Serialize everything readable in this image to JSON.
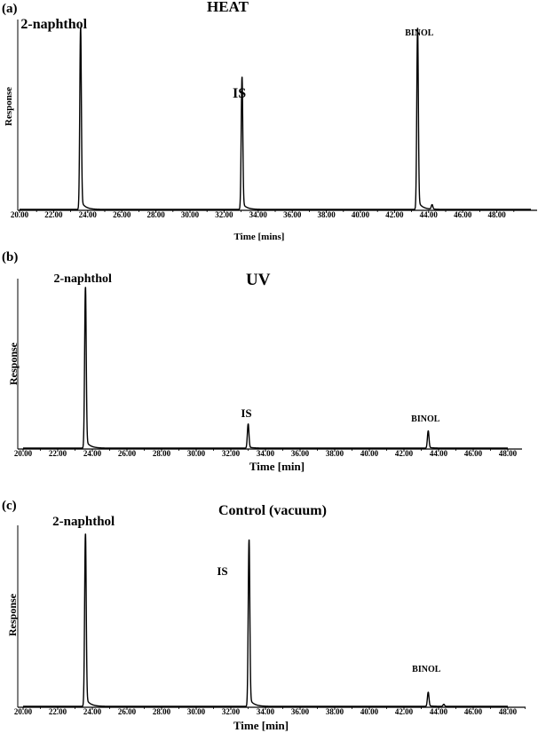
{
  "chart_data": [
    {
      "panel": "(a)",
      "type": "line",
      "title": "HEAT",
      "xlabel": "Time [mins]",
      "ylabel": "Response",
      "xlim": [
        20.0,
        50.0
      ],
      "x_ticks": [
        "20.00",
        "22.00",
        "24.00",
        "26.00",
        "28.00",
        "30.00",
        "32.00",
        "34.00",
        "36.00",
        "38.00",
        "40.00",
        "42.00",
        "44.00",
        "46.00",
        "48.00"
      ],
      "peaks": [
        {
          "label": "2-naphthol",
          "x": 23.58,
          "height": 1.0
        },
        {
          "label": "IS",
          "x": 33.05,
          "height": 0.73
        },
        {
          "label": "BINOL",
          "x": 43.35,
          "height": 1.0
        },
        {
          "label": "",
          "x": 44.2,
          "height": 0.025
        }
      ]
    },
    {
      "panel": "(b)",
      "type": "line",
      "title": "UV",
      "xlabel": "Time [min]",
      "ylabel": "Response",
      "xlim": [
        20.0,
        48.0
      ],
      "x_ticks": [
        "20.00",
        "22.00",
        "24.00",
        "26.00",
        "28.00",
        "30.00",
        "32.00",
        "34.00",
        "36.00",
        "38.00",
        "40.00",
        "42.00",
        "44.00",
        "46.00",
        "48.00"
      ],
      "peaks": [
        {
          "label": "2-naphthol",
          "x": 23.6,
          "height": 1.0
        },
        {
          "label": "IS",
          "x": 33.0,
          "height": 0.15
        },
        {
          "label": "BINOL",
          "x": 43.4,
          "height": 0.107
        }
      ]
    },
    {
      "panel": "(c)",
      "type": "line",
      "title": "Control (vacuum)",
      "xlabel": "Time [min]",
      "ylabel": "Response",
      "xlim": [
        20.0,
        48.0
      ],
      "x_ticks": [
        "20.00",
        "22.00",
        "24.00",
        "26.00",
        "28.00",
        "30.00",
        "32.00",
        "34.00",
        "36.00",
        "38.00",
        "40.00",
        "42.00",
        "44.00",
        "46.00",
        "48.00"
      ],
      "peaks": [
        {
          "label": "2-naphthol",
          "x": 23.6,
          "height": 1.0
        },
        {
          "label": "IS",
          "x": 33.05,
          "height": 0.966
        },
        {
          "label": "BINOL",
          "x": 43.4,
          "height": 0.082
        },
        {
          "label": "",
          "x": 44.3,
          "height": 0.012
        }
      ]
    }
  ]
}
